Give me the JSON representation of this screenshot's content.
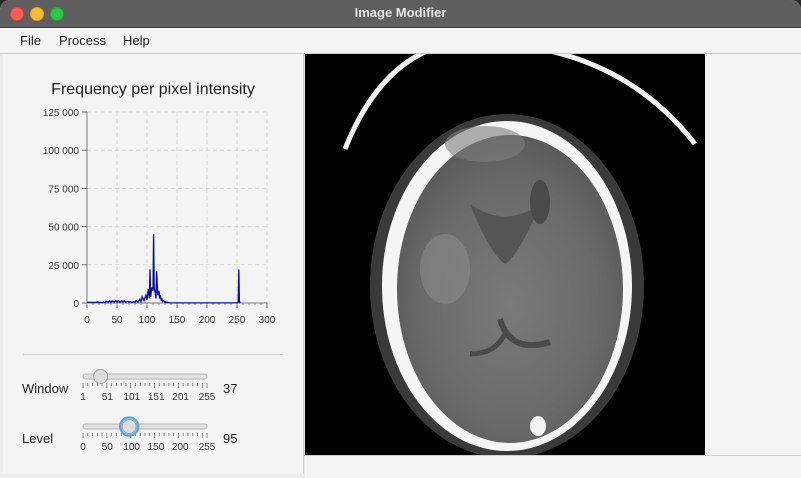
{
  "window": {
    "title": "Image Modifier"
  },
  "menu": {
    "items": [
      "File",
      "Process",
      "Help"
    ]
  },
  "chart_data": {
    "type": "line",
    "title": "Frequency per pixel intensity",
    "xlabel": "",
    "ylabel": "",
    "xlim": [
      0,
      300
    ],
    "ylim": [
      0,
      125000
    ],
    "xticks": [
      "0",
      "50",
      "100",
      "150",
      "200",
      "250",
      "300"
    ],
    "yticks": [
      "125 000",
      "100 000",
      "75 000",
      "50 000",
      "25 000",
      "0"
    ],
    "grid": true,
    "series": [
      {
        "color": "#0a0aa0",
        "x": [
          0,
          5,
          10,
          15,
          18,
          20,
          22,
          25,
          28,
          30,
          32,
          35,
          38,
          40,
          42,
          45,
          48,
          50,
          52,
          55,
          58,
          60,
          62,
          65,
          68,
          70,
          72,
          75,
          78,
          80,
          82,
          85,
          88,
          90,
          92,
          95,
          98,
          100,
          102,
          104,
          105,
          106,
          108,
          110,
          111,
          112,
          114,
          115,
          116,
          118,
          120,
          121,
          122,
          124,
          125,
          126,
          128,
          130,
          131,
          132,
          134,
          135,
          136,
          138,
          140,
          145,
          150,
          170,
          200,
          230,
          250,
          252,
          253,
          254,
          255
        ],
        "y": [
          500,
          400,
          400,
          400,
          600,
          300,
          500,
          300,
          600,
          300,
          1200,
          400,
          1500,
          500,
          1400,
          600,
          1500,
          600,
          1600,
          500,
          1500,
          600,
          1400,
          500,
          1200,
          500,
          1000,
          400,
          1000,
          500,
          1500,
          600,
          2500,
          1000,
          4000,
          1500,
          5000,
          2000,
          9000,
          3000,
          22000,
          4000,
          10000,
          8000,
          45000,
          10000,
          6000,
          3000,
          21000,
          5000,
          8000,
          3000,
          5000,
          1500,
          3000,
          1000,
          1500,
          500,
          800,
          300,
          500,
          200,
          300,
          100,
          100,
          100,
          100,
          100,
          100,
          100,
          100,
          500,
          22000,
          1000,
          100
        ]
      }
    ]
  },
  "sliders": {
    "window": {
      "label": "Window",
      "value": "37",
      "min": 1,
      "max": 255,
      "current": 37,
      "ticks": [
        "1",
        "51",
        "101",
        "151",
        "201",
        "255"
      ]
    },
    "level": {
      "label": "Level",
      "value": "95",
      "min": 0,
      "max": 255,
      "current": 95,
      "ticks": [
        "0",
        "50",
        "100",
        "150",
        "200",
        "255"
      ]
    }
  },
  "colors": {
    "titlebar": "#5f5f5f",
    "accent_ring": "#5aa9e6",
    "series": "#0a0aa0"
  }
}
